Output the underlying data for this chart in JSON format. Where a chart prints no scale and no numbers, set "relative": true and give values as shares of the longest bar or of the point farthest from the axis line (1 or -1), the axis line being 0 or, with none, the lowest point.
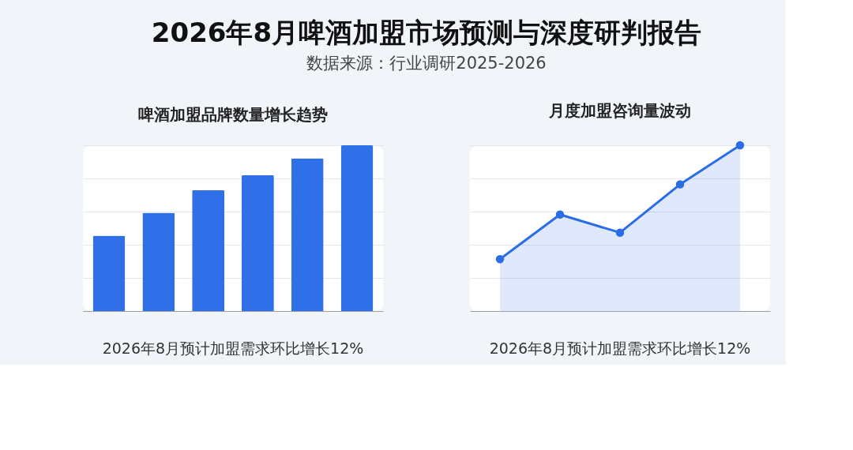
{
  "chart_data": [
    {
      "type": "bar",
      "title": "啤酒加盟品牌数量增长趋势",
      "relative": true,
      "grid": "y",
      "color": "#2f6fe8",
      "categories": [
        null,
        null,
        null,
        null,
        null,
        null
      ],
      "values": [
        0.455,
        0.593,
        0.73,
        0.82,
        0.921,
        1.0
      ],
      "annotations": [
        "2026年8月啤酒加盟市场预测与深度研判报告",
        "数据来源：行业调研2025-2026",
        "2026年8月预计加盟需求环比增长12%"
      ]
    },
    {
      "type": "area",
      "title": "月度加盟咨询量波动",
      "relative": true,
      "grid": "y",
      "color": "#2b6de6",
      "marker": "circle",
      "categories": [
        null,
        null,
        null,
        null,
        null
      ],
      "values": [
        0.313,
        0.582,
        0.473,
        0.764,
        1.0
      ],
      "annotations": [
        "2026年8月预计加盟需求环比增长12%"
      ]
    }
  ]
}
